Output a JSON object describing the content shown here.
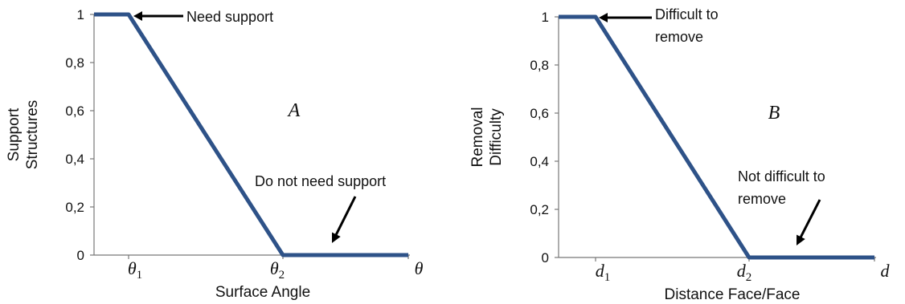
{
  "chart_data": [
    {
      "type": "line",
      "panel_label": "A",
      "xlabel": "Surface Angle",
      "ylabel_lines": [
        "Support",
        "Structures"
      ],
      "ylim": [
        0,
        1
      ],
      "yticks": [
        "0",
        "0,2",
        "0,4",
        "0,6",
        "0,8",
        "1"
      ],
      "xticks": [
        {
          "base": "θ",
          "sub": "1"
        },
        {
          "base": "θ",
          "sub": "2"
        },
        {
          "base": "θ",
          "sub": ""
        }
      ],
      "series": [
        {
          "x": [
            "start",
            "θ1",
            "θ2",
            "θ"
          ],
          "values": [
            1,
            1,
            0,
            0
          ],
          "color": "#2e5288"
        }
      ],
      "annotations": [
        {
          "lines": [
            "Need support"
          ]
        },
        {
          "lines": [
            "Do not need support"
          ]
        }
      ]
    },
    {
      "type": "line",
      "panel_label": "B",
      "xlabel": "Distance Face/Face",
      "ylabel_lines": [
        "Removal",
        "Difficulty"
      ],
      "ylim": [
        0,
        1
      ],
      "yticks": [
        "0",
        "0,2",
        "0,4",
        "0,6",
        "0,8",
        "1"
      ],
      "xticks": [
        {
          "base": "d",
          "sub": "1"
        },
        {
          "base": "d",
          "sub": "2"
        },
        {
          "base": "d",
          "sub": ""
        }
      ],
      "series": [
        {
          "x": [
            "start",
            "d1",
            "d2",
            "d"
          ],
          "values": [
            1,
            1,
            0,
            0
          ],
          "color": "#2e5288"
        }
      ],
      "annotations": [
        {
          "lines": [
            "Difficult to",
            "remove"
          ]
        },
        {
          "lines": [
            "Not difficult to",
            "remove"
          ]
        }
      ]
    }
  ]
}
